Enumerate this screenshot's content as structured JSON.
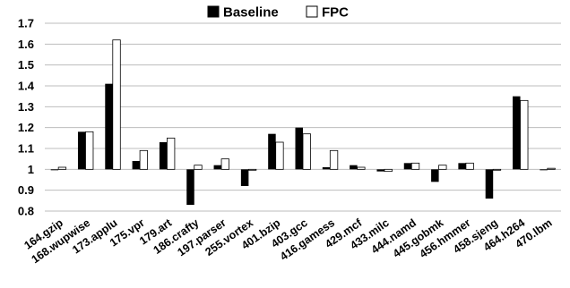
{
  "chart_data": {
    "type": "bar",
    "categories": [
      "164.gzip",
      "168.wupwise",
      "173.applu",
      "175.vpr",
      "179.art",
      "186.crafty",
      "197.parser",
      "255.vortex",
      "401.bzip",
      "403.gcc",
      "416.gamess",
      "429.mcf",
      "433.milc",
      "444.namd",
      "445.gobmk",
      "456.hmmer",
      "458.sjeng",
      "464.h264",
      "470.lbm"
    ],
    "series": [
      {
        "name": "Baseline",
        "color": "#000000",
        "values": [
          1.0,
          1.18,
          1.41,
          1.04,
          1.13,
          0.83,
          1.02,
          0.92,
          1.17,
          1.2,
          1.01,
          1.02,
          0.99,
          1.03,
          0.94,
          1.03,
          0.86,
          1.35,
          1.0
        ]
      },
      {
        "name": "FPC",
        "color": "#ffffff",
        "values": [
          1.01,
          1.18,
          1.62,
          1.09,
          1.15,
          1.02,
          1.05,
          1.0,
          1.13,
          1.17,
          1.09,
          1.01,
          0.99,
          1.03,
          1.02,
          1.03,
          1.0,
          1.33,
          1.005
        ]
      }
    ],
    "baseline": 1.0,
    "ylim": [
      0.8,
      1.7
    ],
    "yticks": [
      "0.8",
      "0.9",
      "1",
      "1.1",
      "1.2",
      "1.3",
      "1.4",
      "1.5",
      "1.6",
      "1.7"
    ],
    "grid": true,
    "legend_position": "top-center"
  }
}
